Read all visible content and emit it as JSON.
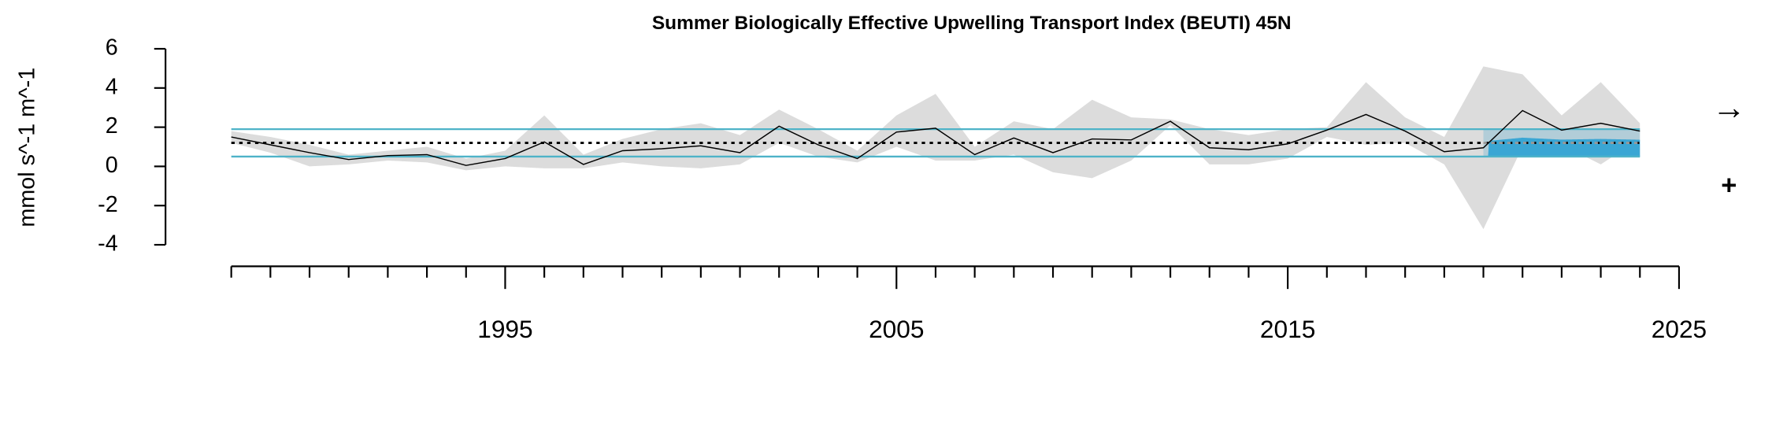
{
  "chart_data": {
    "type": "line",
    "title": "Summer Biologically Effective Upwelling Transport Index (BEUTI) 45N",
    "y_label": "mmol s^-1 m^-1",
    "x": [
      1988,
      1989,
      1990,
      1991,
      1992,
      1993,
      1994,
      1995,
      1996,
      1997,
      1998,
      1999,
      2000,
      2001,
      2002,
      2003,
      2004,
      2005,
      2006,
      2007,
      2008,
      2009,
      2010,
      2011,
      2012,
      2013,
      2014,
      2015,
      2016,
      2017,
      2018,
      2019,
      2020,
      2021,
      2022,
      2023,
      2024
    ],
    "series": [
      {
        "name": "index",
        "color": "#000000",
        "values": [
          1.5,
          1.1,
          0.7,
          0.35,
          0.55,
          0.6,
          0.05,
          0.4,
          1.25,
          0.1,
          0.8,
          0.9,
          1.05,
          0.7,
          2.05,
          1.1,
          0.4,
          1.75,
          1.95,
          0.6,
          1.45,
          0.7,
          1.4,
          1.35,
          2.3,
          0.95,
          0.85,
          1.15,
          1.85,
          2.65,
          1.8,
          0.75,
          0.95,
          2.85,
          1.85,
          2.2,
          1.8
        ]
      },
      {
        "name": "upper",
        "color": "#dcdcdc",
        "values": [
          1.8,
          1.5,
          1.1,
          0.6,
          0.8,
          1.0,
          0.4,
          0.8,
          2.6,
          0.6,
          1.4,
          1.9,
          2.2,
          1.6,
          2.9,
          1.9,
          0.8,
          2.6,
          3.7,
          1.0,
          2.3,
          1.9,
          3.4,
          2.5,
          2.4,
          1.9,
          1.6,
          1.9,
          2.0,
          4.3,
          2.5,
          1.5,
          5.1,
          4.7,
          2.6,
          4.3,
          2.2
        ]
      },
      {
        "name": "lower",
        "color": "#dcdcdc",
        "values": [
          1.2,
          0.7,
          0.0,
          0.1,
          0.3,
          0.2,
          -0.2,
          0.0,
          -0.1,
          -0.1,
          0.2,
          0.0,
          -0.1,
          0.1,
          1.2,
          0.5,
          0.2,
          1.0,
          0.3,
          0.3,
          0.6,
          -0.3,
          -0.6,
          0.3,
          2.1,
          0.1,
          0.1,
          0.4,
          1.5,
          1.1,
          1.2,
          0.1,
          -3.2,
          1.0,
          1.1,
          0.1,
          1.4
        ]
      }
    ],
    "mean": 1.2,
    "sd_upper": 1.9,
    "sd_lower": 0.5,
    "highlight_x": [
      2020,
      2024
    ],
    "xlim": [
      1988,
      2025
    ],
    "xticks": [
      1995,
      2005,
      2015,
      2025
    ],
    "xminorticks": [
      1988,
      1989,
      1990,
      1991,
      1992,
      1993,
      1994,
      1996,
      1997,
      1998,
      1999,
      2000,
      2001,
      2002,
      2003,
      2004,
      2006,
      2007,
      2008,
      2009,
      2010,
      2011,
      2012,
      2013,
      2014,
      2016,
      2017,
      2018,
      2019,
      2020,
      2021,
      2022,
      2023,
      2024
    ],
    "ylim": [
      -4,
      6
    ],
    "yticks": [
      -4,
      -2,
      0,
      2,
      4,
      6
    ],
    "trend_symbol": "→",
    "mean_symbol": "+"
  }
}
